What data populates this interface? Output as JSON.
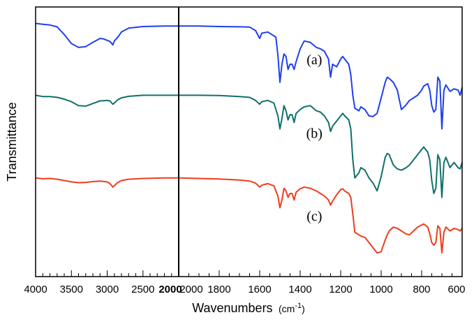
{
  "chart_data": {
    "type": "line",
    "xlabel": "Wavenumbers",
    "xlabel_unit_prefix": "(cm",
    "xlabel_unit_sup": "-1",
    "xlabel_unit_suffix": ")",
    "ylabel": "Transmittance",
    "x_axis": "broken axis, decreasing left to right",
    "left_segment": {
      "xlim": [
        4000,
        2000
      ],
      "ticks": [
        "4000",
        "3500",
        "3000",
        "2500",
        "2000"
      ]
    },
    "right_segment": {
      "xlim": [
        2000,
        600
      ],
      "ticks": [
        "2000",
        "1800",
        "1600",
        "1400",
        "1200",
        "1000",
        "800",
        "600"
      ]
    },
    "y_ticks": "none",
    "ylim": [
      0,
      1
    ],
    "grid": false,
    "legend": "none",
    "series": [
      {
        "label": "(a)",
        "color": "#1f3ff2",
        "points": [
          [
            4000,
            0.958
          ],
          [
            3900,
            0.955
          ],
          [
            3800,
            0.952
          ],
          [
            3700,
            0.945
          ],
          [
            3600,
            0.915
          ],
          [
            3500,
            0.88
          ],
          [
            3400,
            0.865
          ],
          [
            3300,
            0.868
          ],
          [
            3200,
            0.885
          ],
          [
            3100,
            0.9
          ],
          [
            3050,
            0.898
          ],
          [
            2960,
            0.888
          ],
          [
            2920,
            0.875
          ],
          [
            2900,
            0.89
          ],
          [
            2850,
            0.905
          ],
          [
            2800,
            0.925
          ],
          [
            2700,
            0.94
          ],
          [
            2500,
            0.946
          ],
          [
            2200,
            0.948
          ],
          [
            2000,
            0.948
          ],
          [
            1900,
            0.948
          ],
          [
            1800,
            0.946
          ],
          [
            1700,
            0.945
          ],
          [
            1650,
            0.944
          ],
          [
            1620,
            0.93
          ],
          [
            1600,
            0.9
          ],
          [
            1590,
            0.92
          ],
          [
            1560,
            0.925
          ],
          [
            1520,
            0.905
          ],
          [
            1510,
            0.835
          ],
          [
            1500,
            0.73
          ],
          [
            1490,
            0.8
          ],
          [
            1480,
            0.84
          ],
          [
            1470,
            0.83
          ],
          [
            1460,
            0.78
          ],
          [
            1450,
            0.8
          ],
          [
            1440,
            0.8
          ],
          [
            1430,
            0.78
          ],
          [
            1420,
            0.81
          ],
          [
            1400,
            0.86
          ],
          [
            1380,
            0.89
          ],
          [
            1350,
            0.885
          ],
          [
            1320,
            0.865
          ],
          [
            1300,
            0.86
          ],
          [
            1280,
            0.85
          ],
          [
            1260,
            0.82
          ],
          [
            1250,
            0.75
          ],
          [
            1240,
            0.8
          ],
          [
            1220,
            0.79
          ],
          [
            1200,
            0.82
          ],
          [
            1190,
            0.83
          ],
          [
            1180,
            0.82
          ],
          [
            1160,
            0.8
          ],
          [
            1150,
            0.76
          ],
          [
            1140,
            0.68
          ],
          [
            1130,
            0.63
          ],
          [
            1110,
            0.62
          ],
          [
            1100,
            0.635
          ],
          [
            1080,
            0.625
          ],
          [
            1060,
            0.6
          ],
          [
            1040,
            0.598
          ],
          [
            1020,
            0.61
          ],
          [
            1000,
            0.67
          ],
          [
            980,
            0.73
          ],
          [
            970,
            0.75
          ],
          [
            960,
            0.745
          ],
          [
            940,
            0.73
          ],
          [
            920,
            0.7
          ],
          [
            900,
            0.625
          ],
          [
            880,
            0.64
          ],
          [
            860,
            0.66
          ],
          [
            840,
            0.67
          ],
          [
            820,
            0.68
          ],
          [
            800,
            0.7
          ],
          [
            790,
            0.715
          ],
          [
            770,
            0.725
          ],
          [
            760,
            0.7
          ],
          [
            750,
            0.64
          ],
          [
            740,
            0.615
          ],
          [
            730,
            0.625
          ],
          [
            720,
            0.75
          ],
          [
            710,
            0.735
          ],
          [
            700,
            0.55
          ],
          [
            690,
            0.7
          ],
          [
            680,
            0.72
          ],
          [
            660,
            0.695
          ],
          [
            640,
            0.705
          ],
          [
            620,
            0.7
          ],
          [
            610,
            0.68
          ],
          [
            600,
            0.71
          ]
        ]
      },
      {
        "label": "(b)",
        "color": "#10706a",
        "points": [
          [
            4000,
            0.68
          ],
          [
            3900,
            0.675
          ],
          [
            3800,
            0.675
          ],
          [
            3700,
            0.672
          ],
          [
            3600,
            0.665
          ],
          [
            3500,
            0.655
          ],
          [
            3400,
            0.64
          ],
          [
            3300,
            0.638
          ],
          [
            3200,
            0.648
          ],
          [
            3100,
            0.658
          ],
          [
            3000,
            0.66
          ],
          [
            2960,
            0.658
          ],
          [
            2920,
            0.645
          ],
          [
            2900,
            0.65
          ],
          [
            2850,
            0.663
          ],
          [
            2800,
            0.67
          ],
          [
            2700,
            0.676
          ],
          [
            2500,
            0.68
          ],
          [
            2200,
            0.68
          ],
          [
            2000,
            0.68
          ],
          [
            1900,
            0.68
          ],
          [
            1800,
            0.679
          ],
          [
            1700,
            0.675
          ],
          [
            1650,
            0.672
          ],
          [
            1620,
            0.66
          ],
          [
            1600,
            0.645
          ],
          [
            1590,
            0.655
          ],
          [
            1560,
            0.66
          ],
          [
            1530,
            0.65
          ],
          [
            1510,
            0.6
          ],
          [
            1500,
            0.55
          ],
          [
            1490,
            0.59
          ],
          [
            1480,
            0.64
          ],
          [
            1470,
            0.62
          ],
          [
            1460,
            0.585
          ],
          [
            1450,
            0.605
          ],
          [
            1440,
            0.605
          ],
          [
            1430,
            0.575
          ],
          [
            1420,
            0.61
          ],
          [
            1400,
            0.625
          ],
          [
            1380,
            0.635
          ],
          [
            1350,
            0.64
          ],
          [
            1320,
            0.62
          ],
          [
            1300,
            0.615
          ],
          [
            1280,
            0.6
          ],
          [
            1260,
            0.575
          ],
          [
            1250,
            0.54
          ],
          [
            1240,
            0.56
          ],
          [
            1220,
            0.58
          ],
          [
            1200,
            0.6
          ],
          [
            1190,
            0.61
          ],
          [
            1180,
            0.6
          ],
          [
            1160,
            0.585
          ],
          [
            1150,
            0.55
          ],
          [
            1140,
            0.43
          ],
          [
            1130,
            0.36
          ],
          [
            1110,
            0.38
          ],
          [
            1100,
            0.4
          ],
          [
            1080,
            0.39
          ],
          [
            1060,
            0.36
          ],
          [
            1040,
            0.34
          ],
          [
            1020,
            0.31
          ],
          [
            1000,
            0.365
          ],
          [
            980,
            0.44
          ],
          [
            970,
            0.455
          ],
          [
            960,
            0.45
          ],
          [
            940,
            0.41
          ],
          [
            920,
            0.395
          ],
          [
            900,
            0.39
          ],
          [
            880,
            0.398
          ],
          [
            860,
            0.41
          ],
          [
            840,
            0.43
          ],
          [
            820,
            0.45
          ],
          [
            800,
            0.47
          ],
          [
            790,
            0.48
          ],
          [
            770,
            0.46
          ],
          [
            760,
            0.43
          ],
          [
            750,
            0.35
          ],
          [
            740,
            0.3
          ],
          [
            730,
            0.32
          ],
          [
            720,
            0.45
          ],
          [
            710,
            0.43
          ],
          [
            700,
            0.285
          ],
          [
            690,
            0.42
          ],
          [
            680,
            0.44
          ],
          [
            660,
            0.4
          ],
          [
            640,
            0.42
          ],
          [
            620,
            0.4
          ],
          [
            610,
            0.395
          ],
          [
            600,
            0.42
          ]
        ]
      },
      {
        "label": "(c)",
        "color": "#ee3d1e",
        "points": [
          [
            4000,
            0.36
          ],
          [
            3900,
            0.357
          ],
          [
            3800,
            0.358
          ],
          [
            3700,
            0.355
          ],
          [
            3600,
            0.35
          ],
          [
            3500,
            0.345
          ],
          [
            3400,
            0.342
          ],
          [
            3300,
            0.343
          ],
          [
            3200,
            0.346
          ],
          [
            3100,
            0.348
          ],
          [
            3000,
            0.345
          ],
          [
            2960,
            0.338
          ],
          [
            2920,
            0.325
          ],
          [
            2900,
            0.33
          ],
          [
            2850,
            0.343
          ],
          [
            2800,
            0.35
          ],
          [
            2700,
            0.355
          ],
          [
            2500,
            0.358
          ],
          [
            2200,
            0.36
          ],
          [
            2000,
            0.36
          ],
          [
            1900,
            0.358
          ],
          [
            1800,
            0.356
          ],
          [
            1700,
            0.352
          ],
          [
            1650,
            0.348
          ],
          [
            1620,
            0.34
          ],
          [
            1600,
            0.325
          ],
          [
            1590,
            0.332
          ],
          [
            1560,
            0.338
          ],
          [
            1530,
            0.33
          ],
          [
            1510,
            0.29
          ],
          [
            1500,
            0.245
          ],
          [
            1490,
            0.275
          ],
          [
            1480,
            0.32
          ],
          [
            1470,
            0.31
          ],
          [
            1460,
            0.285
          ],
          [
            1450,
            0.3
          ],
          [
            1440,
            0.3
          ],
          [
            1430,
            0.275
          ],
          [
            1420,
            0.305
          ],
          [
            1400,
            0.318
          ],
          [
            1380,
            0.325
          ],
          [
            1350,
            0.32
          ],
          [
            1320,
            0.31
          ],
          [
            1300,
            0.3
          ],
          [
            1280,
            0.29
          ],
          [
            1260,
            0.275
          ],
          [
            1250,
            0.255
          ],
          [
            1240,
            0.27
          ],
          [
            1220,
            0.295
          ],
          [
            1200,
            0.315
          ],
          [
            1190,
            0.318
          ],
          [
            1180,
            0.31
          ],
          [
            1160,
            0.3
          ],
          [
            1150,
            0.285
          ],
          [
            1140,
            0.22
          ],
          [
            1130,
            0.15
          ],
          [
            1110,
            0.14
          ],
          [
            1100,
            0.135
          ],
          [
            1080,
            0.13
          ],
          [
            1060,
            0.11
          ],
          [
            1040,
            0.09
          ],
          [
            1020,
            0.07
          ],
          [
            1000,
            0.075
          ],
          [
            980,
            0.12
          ],
          [
            970,
            0.14
          ],
          [
            960,
            0.155
          ],
          [
            940,
            0.17
          ],
          [
            920,
            0.165
          ],
          [
            900,
            0.155
          ],
          [
            880,
            0.145
          ],
          [
            860,
            0.14
          ],
          [
            840,
            0.155
          ],
          [
            820,
            0.17
          ],
          [
            800,
            0.178
          ],
          [
            790,
            0.182
          ],
          [
            770,
            0.17
          ],
          [
            760,
            0.145
          ],
          [
            750,
            0.11
          ],
          [
            740,
            0.1
          ],
          [
            730,
            0.11
          ],
          [
            720,
            0.175
          ],
          [
            710,
            0.165
          ],
          [
            700,
            0.07
          ],
          [
            690,
            0.15
          ],
          [
            680,
            0.17
          ],
          [
            660,
            0.155
          ],
          [
            640,
            0.165
          ],
          [
            620,
            0.16
          ],
          [
            610,
            0.155
          ],
          [
            600,
            0.165
          ]
        ]
      }
    ]
  }
}
